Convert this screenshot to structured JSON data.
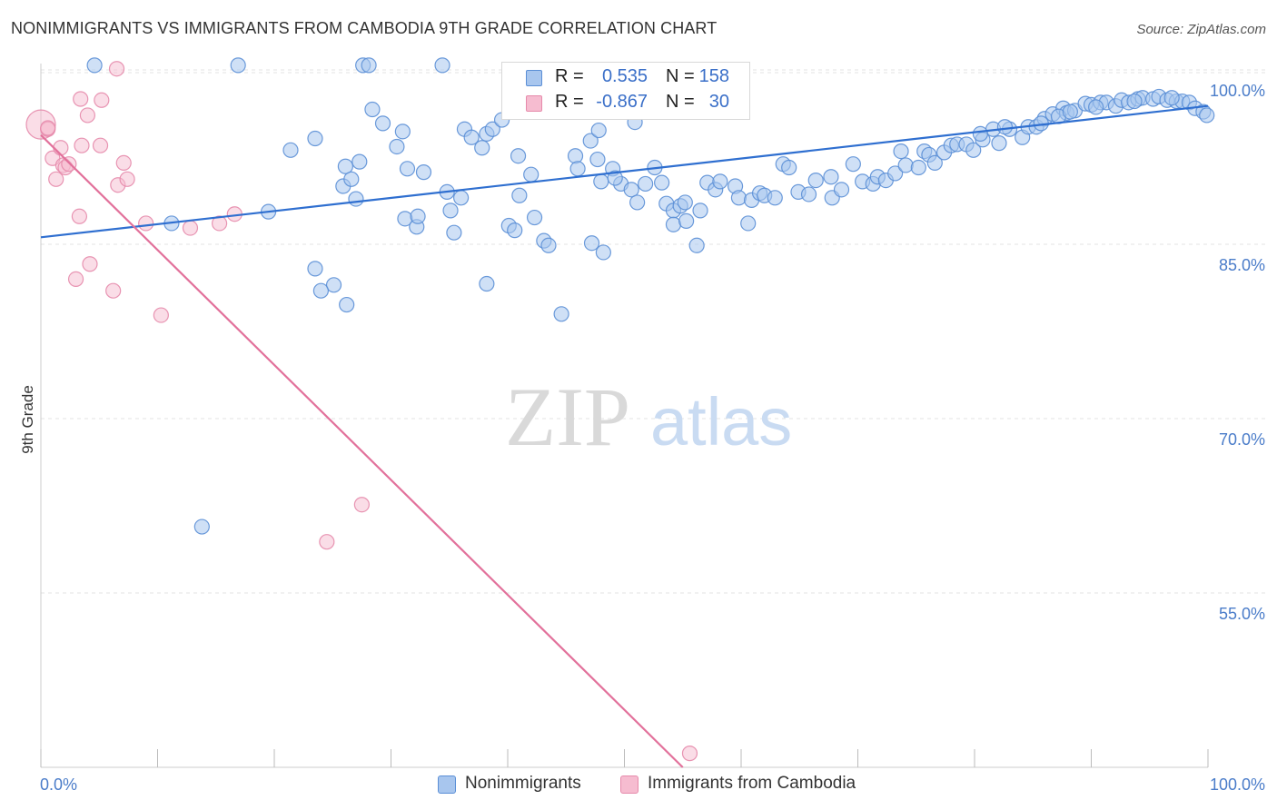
{
  "header": {
    "title": "NONIMMIGRANTS VS IMMIGRANTS FROM CAMBODIA 9TH GRADE CORRELATION CHART",
    "source": "Source: ZipAtlas.com"
  },
  "watermark": {
    "zip": "ZIP",
    "atlas": "atlas"
  },
  "stats_legend": {
    "rows": [
      {
        "r_label": "R =",
        "r_value": "0.535",
        "n_label": "N =",
        "n_value": "158"
      },
      {
        "r_label": "R =",
        "r_value": "-0.867",
        "n_label": "N =",
        "n_value": "30"
      }
    ]
  },
  "bottom_legend": {
    "items": [
      {
        "label": "Nonimmigrants"
      },
      {
        "label": "Immigrants from Cambodia"
      }
    ]
  },
  "colors": {
    "blue_fill": "#a8c6ee",
    "blue_stroke": "#5b8fd6",
    "blue_line": "#2f6fd0",
    "pink_fill": "#f6bcd0",
    "pink_stroke": "#e68aab",
    "pink_line": "#e2719b",
    "tick_text": "#4a7cc9"
  },
  "chart_data": {
    "type": "scatter",
    "title": "NONIMMIGRANTS VS IMMIGRANTS FROM CAMBODIA 9TH GRADE CORRELATION CHART",
    "ylabel": "9th Grade",
    "xlabel": "",
    "xlim": [
      0,
      100
    ],
    "ylim": [
      40,
      102
    ],
    "x_tick_labels": [
      "0.0%",
      "100.0%"
    ],
    "y_ticks": [
      {
        "value": 100,
        "label": "100.0%"
      },
      {
        "value": 85,
        "label": "85.0%"
      },
      {
        "value": 70,
        "label": "70.0%"
      },
      {
        "value": 55,
        "label": "55.0%"
      }
    ],
    "grid": true,
    "legend_position": "top-center",
    "series": [
      {
        "name": "Nonimmigrants",
        "color": "#a8c6ee",
        "trend": {
          "x": [
            0,
            100
          ],
          "y": [
            85.6,
            96.9
          ]
        },
        "points": [
          [
            4.6,
            100.4
          ],
          [
            16.9,
            100.4
          ],
          [
            27.6,
            100.4
          ],
          [
            28.1,
            100.4
          ],
          [
            34.4,
            100.4
          ],
          [
            11.2,
            86.8
          ],
          [
            19.5,
            87.8
          ],
          [
            21.4,
            93.1
          ],
          [
            23.5,
            82.9
          ],
          [
            25.1,
            81.5
          ],
          [
            26.2,
            79.8
          ],
          [
            24.0,
            81.0
          ],
          [
            13.8,
            60.7
          ],
          [
            23.5,
            94.1
          ],
          [
            25.9,
            90.0
          ],
          [
            26.1,
            91.7
          ],
          [
            27.3,
            92.1
          ],
          [
            27.0,
            88.9
          ],
          [
            26.6,
            90.6
          ],
          [
            28.4,
            96.6
          ],
          [
            29.3,
            95.4
          ],
          [
            30.5,
            93.4
          ],
          [
            31.0,
            94.7
          ],
          [
            31.4,
            91.5
          ],
          [
            32.8,
            91.2
          ],
          [
            31.2,
            87.2
          ],
          [
            32.2,
            86.5
          ],
          [
            32.3,
            87.4
          ],
          [
            34.8,
            89.5
          ],
          [
            35.1,
            87.9
          ],
          [
            35.4,
            86.0
          ],
          [
            36.0,
            89.0
          ],
          [
            36.3,
            94.9
          ],
          [
            36.9,
            94.2
          ],
          [
            38.2,
            94.5
          ],
          [
            37.8,
            93.3
          ],
          [
            38.7,
            94.9
          ],
          [
            39.5,
            95.7
          ],
          [
            38.2,
            81.6
          ],
          [
            40.1,
            86.6
          ],
          [
            40.6,
            86.2
          ],
          [
            41.0,
            89.2
          ],
          [
            42.0,
            91.0
          ],
          [
            40.9,
            92.6
          ],
          [
            42.3,
            87.3
          ],
          [
            43.1,
            85.3
          ],
          [
            43.5,
            84.9
          ],
          [
            44.6,
            79.0
          ],
          [
            45.8,
            92.6
          ],
          [
            46.0,
            91.5
          ],
          [
            47.1,
            93.9
          ],
          [
            47.7,
            92.3
          ],
          [
            47.8,
            94.8
          ],
          [
            47.2,
            85.1
          ],
          [
            48.0,
            90.4
          ],
          [
            48.2,
            84.3
          ],
          [
            49.0,
            91.5
          ],
          [
            49.7,
            90.2
          ],
          [
            49.2,
            90.7
          ],
          [
            50.6,
            89.7
          ],
          [
            50.9,
            95.5
          ],
          [
            51.8,
            90.2
          ],
          [
            51.1,
            88.6
          ],
          [
            52.6,
            91.6
          ],
          [
            53.2,
            90.3
          ],
          [
            53.6,
            88.5
          ],
          [
            54.2,
            87.9
          ],
          [
            54.8,
            88.3
          ],
          [
            55.2,
            88.6
          ],
          [
            54.2,
            86.7
          ],
          [
            55.3,
            87.0
          ],
          [
            56.2,
            84.9
          ],
          [
            56.5,
            87.9
          ],
          [
            57.1,
            90.3
          ],
          [
            57.8,
            89.7
          ],
          [
            58.2,
            90.4
          ],
          [
            59.5,
            90.0
          ],
          [
            59.8,
            89.0
          ],
          [
            60.6,
            86.8
          ],
          [
            60.9,
            88.8
          ],
          [
            61.6,
            89.4
          ],
          [
            62.0,
            89.2
          ],
          [
            62.9,
            89.0
          ],
          [
            63.6,
            91.9
          ],
          [
            64.1,
            91.6
          ],
          [
            64.9,
            89.5
          ],
          [
            65.8,
            89.3
          ],
          [
            66.4,
            90.5
          ],
          [
            67.7,
            90.8
          ],
          [
            67.8,
            89.0
          ],
          [
            68.6,
            89.7
          ],
          [
            69.6,
            91.9
          ],
          [
            70.4,
            90.4
          ],
          [
            71.3,
            90.2
          ],
          [
            71.7,
            90.8
          ],
          [
            72.4,
            90.5
          ],
          [
            73.2,
            91.1
          ],
          [
            73.7,
            93.0
          ],
          [
            74.1,
            91.8
          ],
          [
            75.2,
            91.6
          ],
          [
            75.7,
            93.0
          ],
          [
            76.1,
            92.7
          ],
          [
            76.6,
            92.0
          ],
          [
            77.4,
            92.9
          ],
          [
            78.0,
            93.5
          ],
          [
            78.5,
            93.6
          ],
          [
            79.3,
            93.6
          ],
          [
            79.9,
            93.1
          ],
          [
            80.7,
            94.0
          ],
          [
            81.6,
            94.9
          ],
          [
            82.1,
            93.7
          ],
          [
            83.0,
            94.9
          ],
          [
            84.1,
            94.2
          ],
          [
            84.6,
            95.1
          ],
          [
            85.3,
            95.1
          ],
          [
            86.0,
            95.8
          ],
          [
            86.7,
            96.2
          ],
          [
            87.6,
            96.7
          ],
          [
            87.9,
            96.3
          ],
          [
            88.6,
            96.5
          ],
          [
            89.5,
            97.1
          ],
          [
            90.0,
            97.0
          ],
          [
            90.8,
            97.2
          ],
          [
            91.3,
            97.2
          ],
          [
            92.1,
            96.9
          ],
          [
            92.6,
            97.4
          ],
          [
            93.2,
            97.2
          ],
          [
            94.0,
            97.5
          ],
          [
            94.4,
            97.6
          ],
          [
            95.3,
            97.5
          ],
          [
            95.8,
            97.7
          ],
          [
            96.5,
            97.4
          ],
          [
            97.3,
            97.3
          ],
          [
            97.8,
            97.3
          ],
          [
            98.4,
            97.2
          ],
          [
            98.9,
            96.7
          ],
          [
            99.6,
            96.4
          ],
          [
            99.9,
            96.1
          ],
          [
            87.2,
            96.0
          ],
          [
            88.2,
            96.4
          ],
          [
            90.4,
            96.8
          ],
          [
            93.7,
            97.3
          ],
          [
            96.9,
            97.6
          ],
          [
            85.7,
            95.4
          ],
          [
            82.6,
            95.1
          ],
          [
            80.5,
            94.5
          ]
        ]
      },
      {
        "name": "Immigrants from Cambodia",
        "color": "#f6bcd0",
        "trend": {
          "x": [
            0,
            55
          ],
          "y": [
            94.4,
            40.0
          ]
        },
        "points": [
          [
            0.0,
            95.3
          ],
          [
            0.6,
            94.9
          ],
          [
            0.6,
            95.0
          ],
          [
            1.0,
            92.4
          ],
          [
            1.3,
            90.6
          ],
          [
            1.7,
            93.3
          ],
          [
            1.9,
            91.8
          ],
          [
            2.1,
            91.6
          ],
          [
            2.4,
            91.9
          ],
          [
            3.4,
            97.5
          ],
          [
            3.5,
            93.5
          ],
          [
            4.0,
            96.1
          ],
          [
            4.2,
            83.3
          ],
          [
            5.1,
            93.5
          ],
          [
            5.2,
            97.4
          ],
          [
            6.2,
            81.0
          ],
          [
            6.5,
            100.1
          ],
          [
            6.6,
            90.1
          ],
          [
            7.1,
            92.0
          ],
          [
            7.4,
            90.6
          ],
          [
            9.0,
            86.8
          ],
          [
            10.3,
            78.9
          ],
          [
            12.8,
            86.4
          ],
          [
            15.3,
            86.8
          ],
          [
            16.6,
            87.6
          ],
          [
            3.3,
            87.4
          ],
          [
            27.5,
            62.6
          ],
          [
            24.5,
            59.4
          ],
          [
            55.6,
            41.2
          ],
          [
            3.0,
            82.0
          ]
        ]
      }
    ]
  }
}
